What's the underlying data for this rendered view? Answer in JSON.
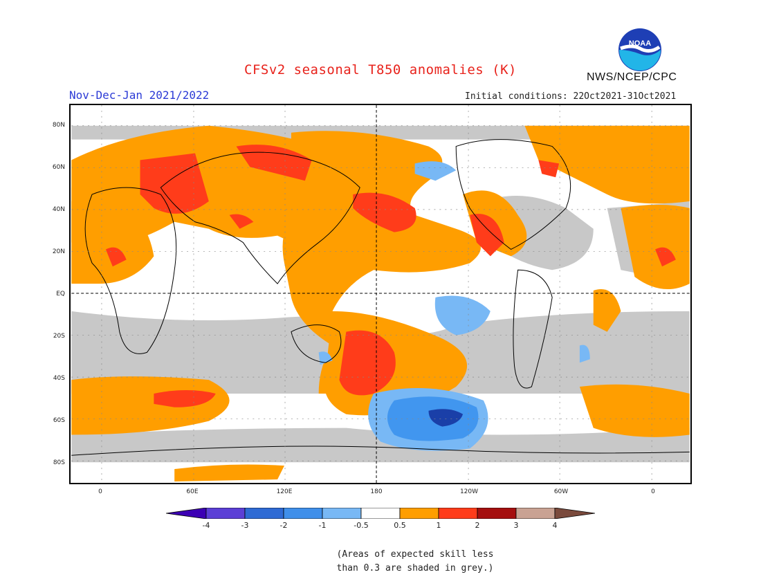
{
  "header": {
    "title": "CFSv2 seasonal T850 anomalies (K)",
    "period": "Nov-Dec-Jan 2021/2022",
    "initial_conditions": "Initial conditions: 22Oct2021-31Oct2021",
    "agency": "NWS/NCEP/CPC",
    "logo_text": "NOAA"
  },
  "map": {
    "lat_labels": [
      "80N",
      "60N",
      "40N",
      "20N",
      "EQ",
      "20S",
      "40S",
      "60S",
      "80S"
    ],
    "lon_labels": [
      "0",
      "60E",
      "120E",
      "180",
      "120W",
      "60W",
      "0"
    ],
    "colors": {
      "grey_low_skill": "#c8c8c8",
      "orange_0_5_to_1": "#ff9e00",
      "red_1_to_2": "#ff3c1a",
      "darkred_2_to_3": "#a50f0f",
      "lightblue_-1_to_-0_5": "#78b8f5",
      "blue_-2_to_-1": "#4196ef",
      "midblue_-3_to_-2": "#2266d4",
      "navy_-3_to_-4": "#1a3fa8"
    }
  },
  "colorbar": {
    "labels": [
      "-4",
      "-3",
      "-2",
      "-1",
      "-0.5",
      "0.5",
      "1",
      "2",
      "3",
      "4"
    ],
    "colors": [
      "#3c00b4",
      "#5b3fd6",
      "#2e6ad4",
      "#3f8fea",
      "#78b8f5",
      "#ffffff",
      "#ff9e00",
      "#ff3c1a",
      "#a50f0f",
      "#c9a293",
      "#7a4a3c"
    ]
  },
  "note": {
    "line1": "(Areas of expected skill less",
    "line2": "than 0.3 are shaded in grey.)"
  }
}
